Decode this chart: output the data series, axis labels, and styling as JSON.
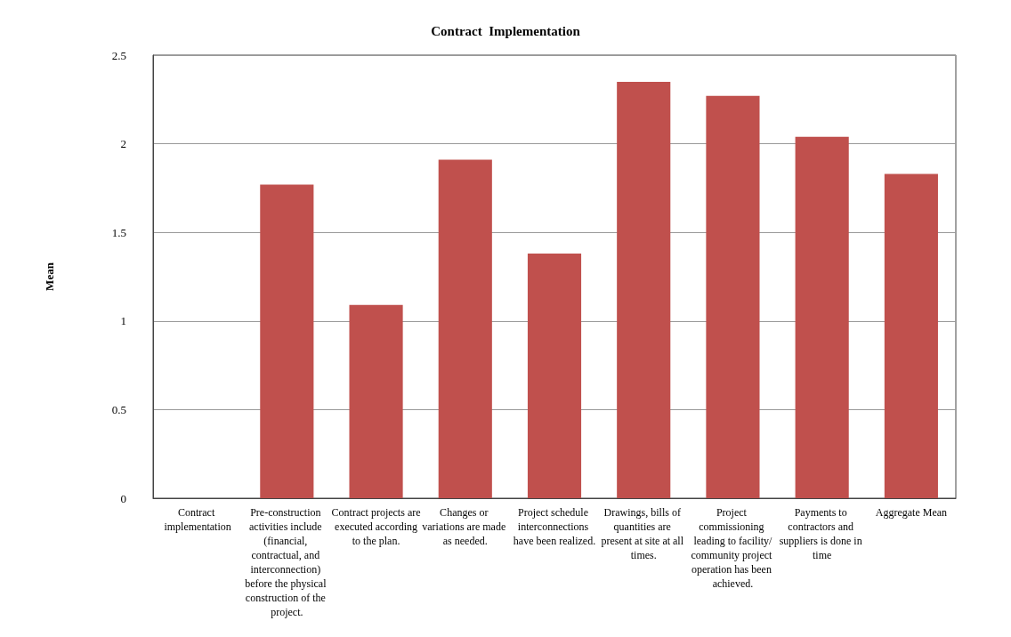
{
  "chart_data": {
    "type": "bar",
    "title": "Contract  Implementation",
    "ylabel": "Mean",
    "categories": [
      "Contract implementation",
      "Pre-construction activities include (financial, contractual, and interconnection) before the physical construction of the project.",
      "Contract projects are executed according to the plan.",
      "Changes or variations are made as needed.",
      "Project schedule interconnections have been realized.",
      "Drawings, bills of quantities are present at site at all times.",
      "Project commissioning leading to facility/community project operation has been achieved.",
      "Payments to contractors and suppliers is done in time",
      "Aggregate Mean"
    ],
    "values": [
      null,
      1.77,
      1.09,
      1.91,
      1.38,
      2.35,
      2.27,
      2.04,
      1.83
    ],
    "color": "#c0504d",
    "ylim": [
      0,
      2.5
    ],
    "yticks": [
      0,
      0.5,
      1,
      1.5,
      2,
      2.5
    ],
    "grid": "y"
  }
}
